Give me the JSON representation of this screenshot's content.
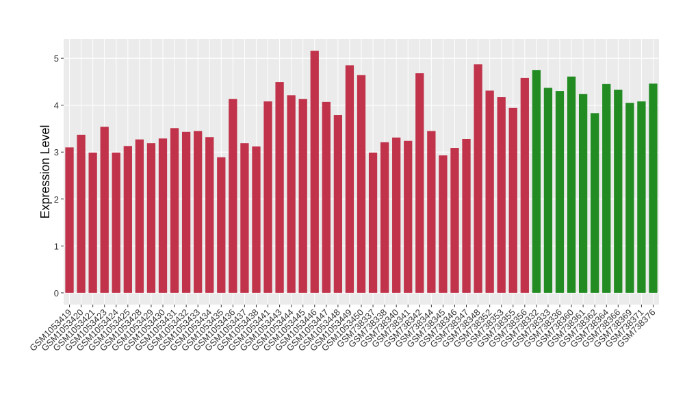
{
  "chart_data": {
    "type": "bar",
    "y_label": "Expression Level",
    "categories": [
      "GSM1053419",
      "GSM1053420",
      "GSM1053421",
      "GSM1053423",
      "GSM1053424",
      "GSM1053425",
      "GSM1053428",
      "GSM1053429",
      "GSM1053430",
      "GSM1053431",
      "GSM1053432",
      "GSM1053433",
      "GSM1053434",
      "GSM1053435",
      "GSM1053436",
      "GSM1053437",
      "GSM1053438",
      "GSM1053441",
      "GSM1053443",
      "GSM1053444",
      "GSM1053445",
      "GSM1053446",
      "GSM1053447",
      "GSM1053448",
      "GSM1053449",
      "GSM1053450",
      "GSM738337",
      "GSM738338",
      "GSM738340",
      "GSM738341",
      "GSM738342",
      "GSM738344",
      "GSM738345",
      "GSM738346",
      "GSM738347",
      "GSM738348",
      "GSM738352",
      "GSM738353",
      "GSM738355",
      "GSM738356",
      "GSM738332",
      "GSM738333",
      "GSM738336",
      "GSM738360",
      "GSM738361",
      "GSM738362",
      "GSM738364",
      "GSM738366",
      "GSM738369",
      "GSM738371",
      "GSM738376"
    ],
    "values": [
      3.1,
      3.37,
      2.99,
      3.54,
      2.99,
      3.13,
      3.27,
      3.19,
      3.29,
      3.51,
      3.43,
      3.45,
      3.32,
      2.89,
      4.13,
      3.19,
      3.12,
      4.08,
      4.49,
      4.21,
      4.13,
      5.16,
      4.07,
      3.79,
      4.85,
      4.64,
      2.99,
      3.21,
      3.31,
      3.24,
      4.68,
      3.45,
      2.93,
      3.09,
      3.28,
      4.87,
      4.31,
      4.17,
      3.94,
      4.58,
      4.75,
      4.37,
      4.3,
      4.61,
      4.24,
      3.83,
      4.45,
      4.33,
      4.05,
      4.08,
      4.46
    ],
    "colors": [
      "#c0334a",
      "#c0334a",
      "#c0334a",
      "#c0334a",
      "#c0334a",
      "#c0334a",
      "#c0334a",
      "#c0334a",
      "#c0334a",
      "#c0334a",
      "#c0334a",
      "#c0334a",
      "#c0334a",
      "#c0334a",
      "#c0334a",
      "#c0334a",
      "#c0334a",
      "#c0334a",
      "#c0334a",
      "#c0334a",
      "#c0334a",
      "#c0334a",
      "#c0334a",
      "#c0334a",
      "#c0334a",
      "#c0334a",
      "#c0334a",
      "#c0334a",
      "#c0334a",
      "#c0334a",
      "#c0334a",
      "#c0334a",
      "#c0334a",
      "#c0334a",
      "#c0334a",
      "#c0334a",
      "#c0334a",
      "#c0334a",
      "#c0334a",
      "#c0334a",
      "#228b22",
      "#228b22",
      "#228b22",
      "#228b22",
      "#228b22",
      "#228b22",
      "#228b22",
      "#228b22",
      "#228b22",
      "#228b22",
      "#228b22"
    ],
    "ylim": [
      -0.25,
      5.41
    ],
    "yticks": [
      0,
      1,
      2,
      3,
      4,
      5
    ],
    "grid": true
  }
}
